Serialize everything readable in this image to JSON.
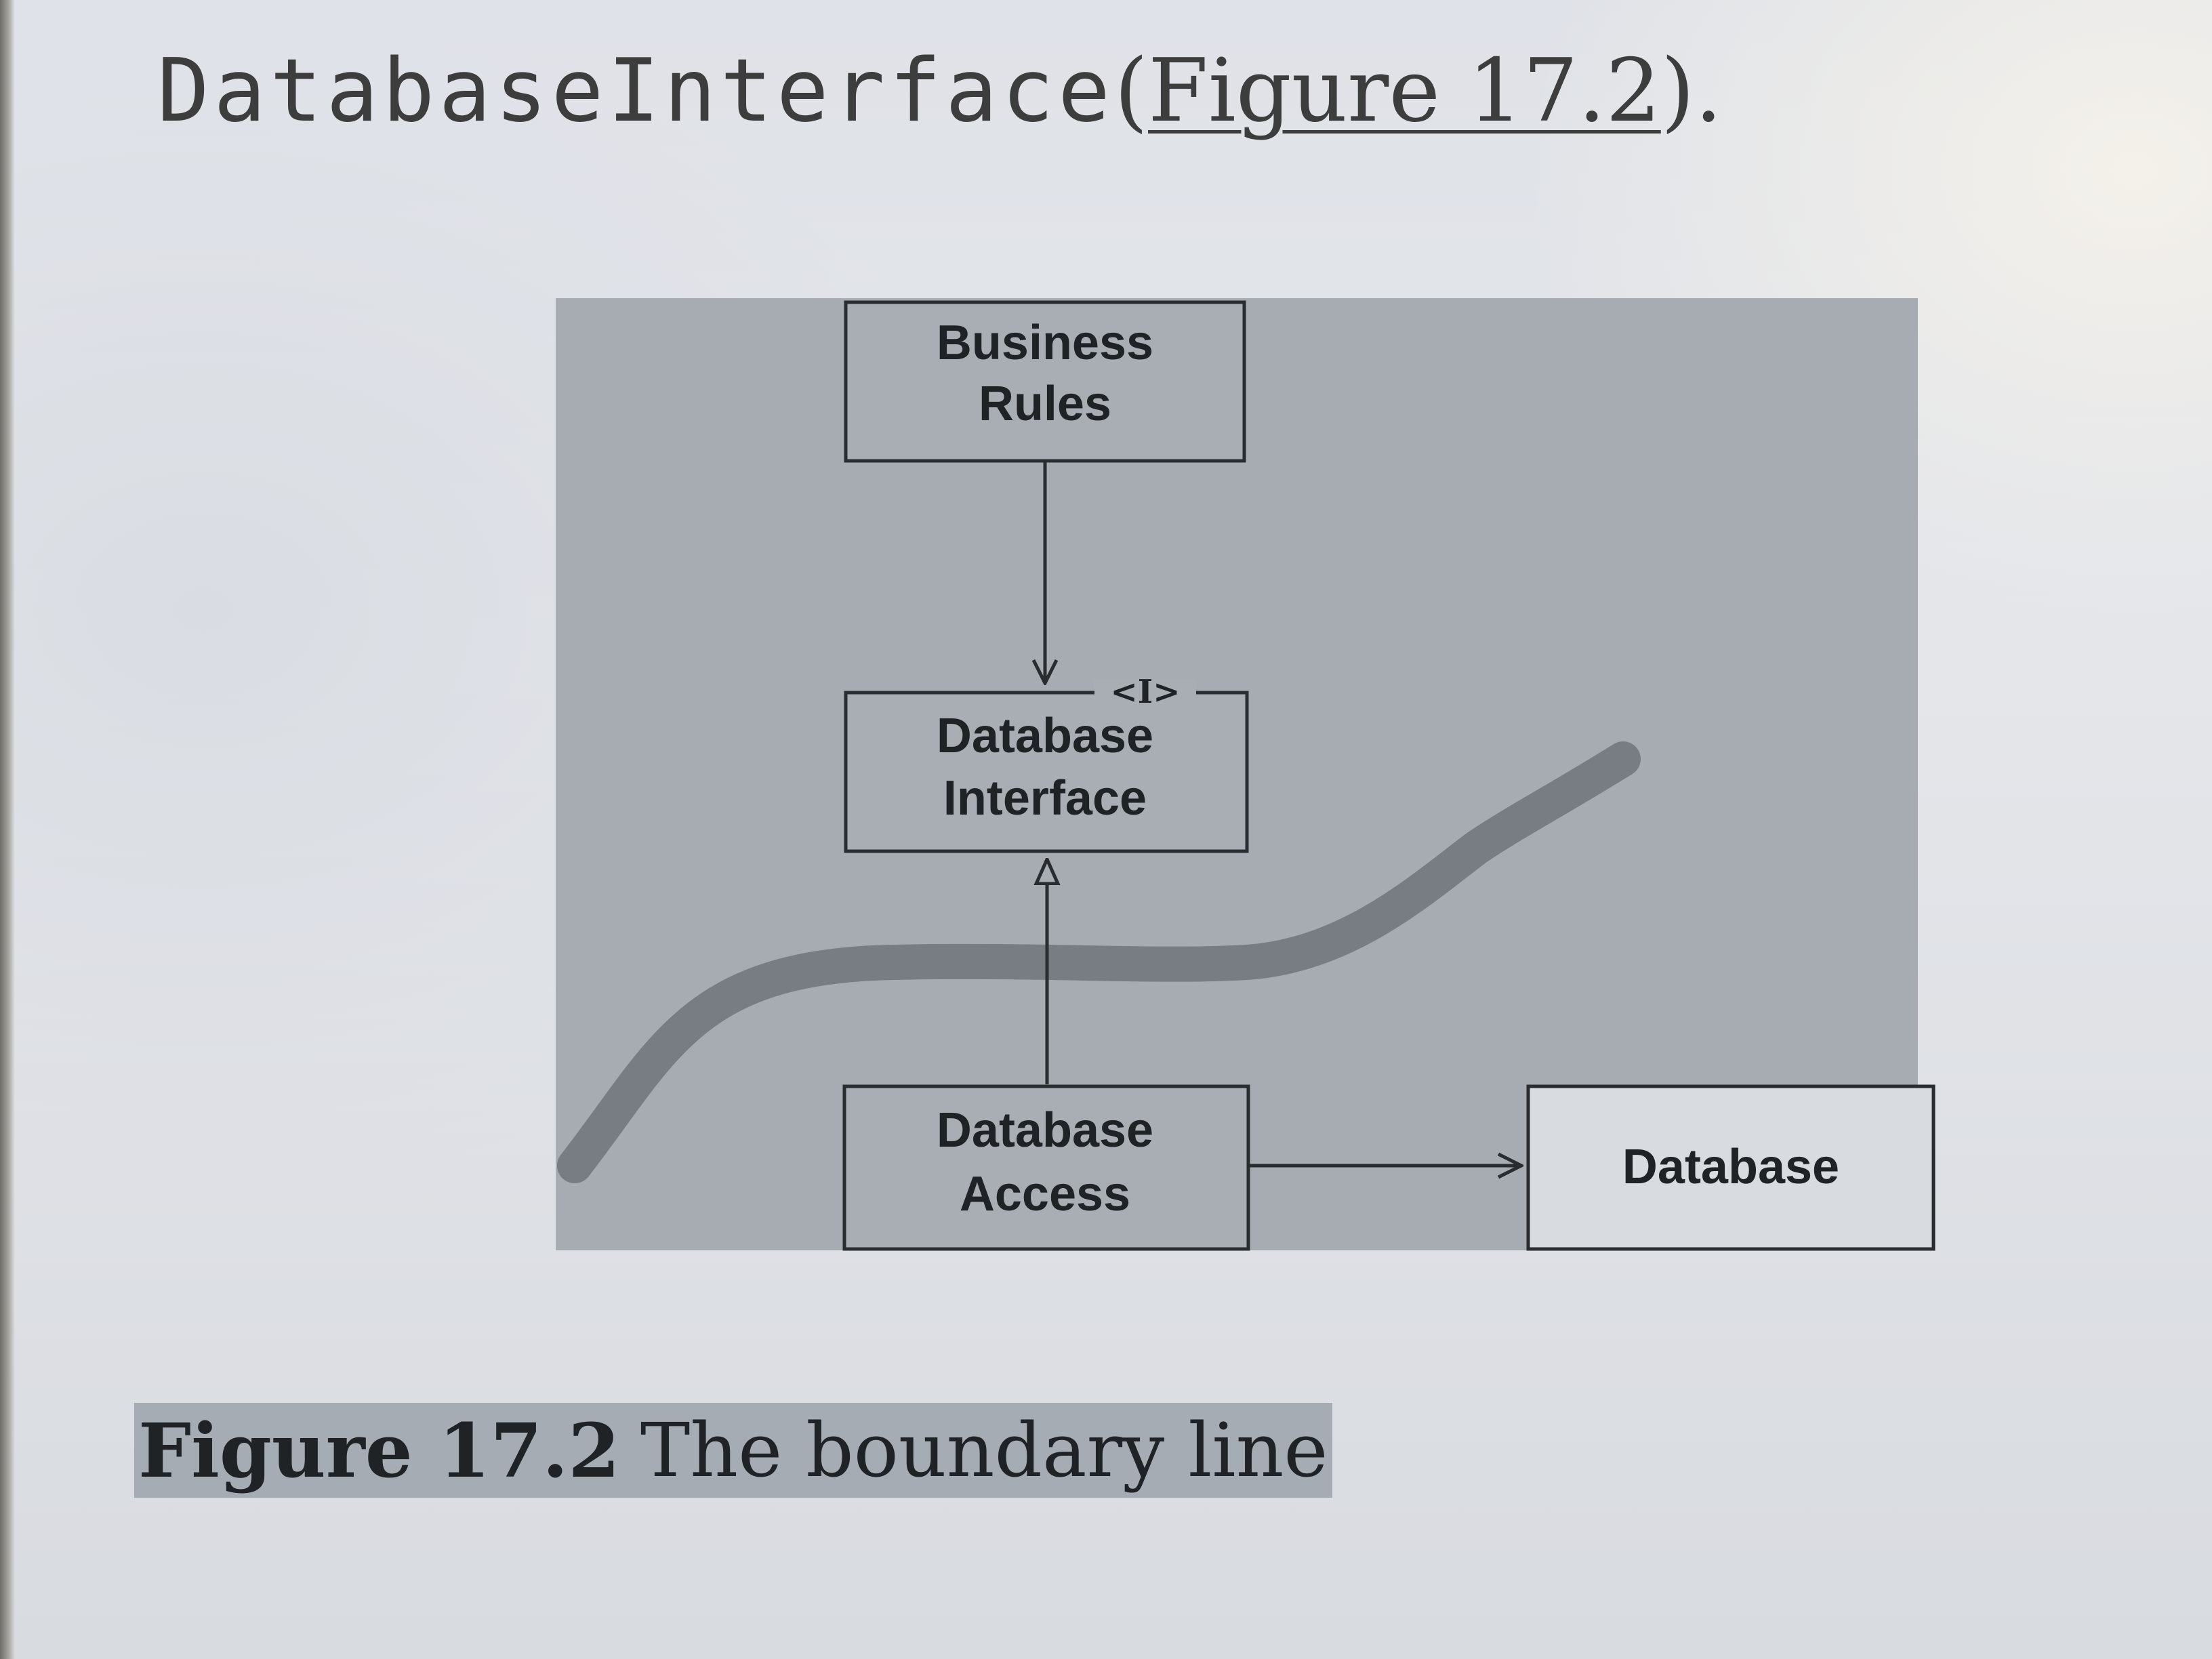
{
  "heading": {
    "code_word": "DatabaseInterface",
    "open_paren": "(",
    "figure_link": "Figure 17.2",
    "close_paren": ").",
    "colors": {
      "text": "#3d3d3d"
    }
  },
  "diagram": {
    "nodes": {
      "business_rules": {
        "lines": [
          "Business",
          "Rules"
        ]
      },
      "database_interface": {
        "lines": [
          "Database",
          "Interface"
        ],
        "stereotype": "<I>"
      },
      "database_access": {
        "lines": [
          "Database",
          "Access"
        ]
      },
      "database": {
        "lines": [
          "Database"
        ]
      }
    },
    "edges": [
      {
        "from": "business_rules",
        "to": "database_interface",
        "type": "dependency"
      },
      {
        "from": "database_access",
        "to": "database_interface",
        "type": "realization"
      },
      {
        "from": "database_access",
        "to": "database",
        "type": "dependency"
      }
    ],
    "colors": {
      "panel": "#a7acb2",
      "box_fill": "#a9aeb4",
      "box_stroke": "#2a2d30",
      "boundary_line": "#787d83",
      "text": "#202326"
    }
  },
  "caption": {
    "number": "Figure 17.2",
    "text": "The boundary line",
    "colors": {
      "highlight": "#a5acb4"
    }
  }
}
